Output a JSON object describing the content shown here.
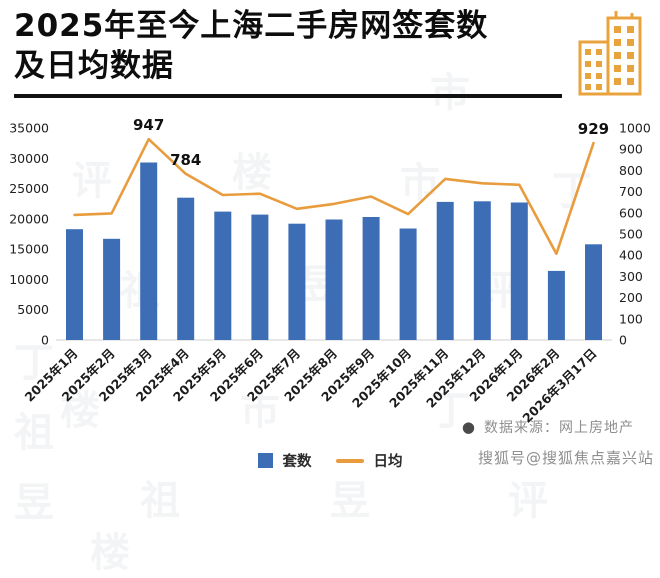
{
  "header": {
    "title": "2025年至今上海二手房网签套数及日均数据",
    "title_line1": "2025年至今上海二手房网签套数",
    "title_line2": "及日均数据"
  },
  "colors": {
    "bar": "#3d6db5",
    "line": "#e89c3e",
    "title": "#0d0d0d",
    "axis_text": "#1f1f1f",
    "source_text": "#8f8f8f"
  },
  "icons": {
    "header_icon": "buildings-icon",
    "source_bullet": "●"
  },
  "chart_data": {
    "type": "bar",
    "subtype": "bar+line combo, dual axis",
    "title": "2025年至今上海二手房网签套数及日均数据",
    "categories": [
      "2025年1月",
      "2025年2月",
      "2025年3月",
      "2025年4月",
      "2025年5月",
      "2025年6月",
      "2025年7月",
      "2025年8月",
      "2025年9月",
      "2025年10月",
      "2025年11月",
      "2025年12月",
      "2026年1月",
      "2026年2月",
      "2026年3月17日"
    ],
    "series": [
      {
        "name": "套数",
        "type": "bar",
        "axis": "left",
        "color": "#3d6db5",
        "values": [
          18300,
          16700,
          29300,
          23500,
          21200,
          20700,
          19200,
          19900,
          20300,
          18400,
          22800,
          22900,
          22700,
          11400,
          15800
        ]
      },
      {
        "name": "日均",
        "type": "line",
        "axis": "right",
        "color": "#e89c3e",
        "values": [
          590,
          597,
          947,
          784,
          684,
          690,
          619,
          642,
          677,
          594,
          760,
          739,
          732,
          407,
          929
        ]
      }
    ],
    "point_labels": [
      {
        "index": 2,
        "text": "947"
      },
      {
        "index": 3,
        "text": "784"
      },
      {
        "index": 14,
        "text": "929"
      }
    ],
    "left_axis": {
      "min": 0,
      "max": 35000,
      "step": 5000
    },
    "right_axis": {
      "min": 0,
      "max": 1000,
      "step": 100
    },
    "grid": false,
    "legend_position": "bottom"
  },
  "footer": {
    "bullet": "●",
    "source": "数据来源：网上房地产",
    "platform_watermark": "搜狐号@搜狐焦点嘉兴站",
    "background_watermark": "丁祖昱评楼市"
  }
}
